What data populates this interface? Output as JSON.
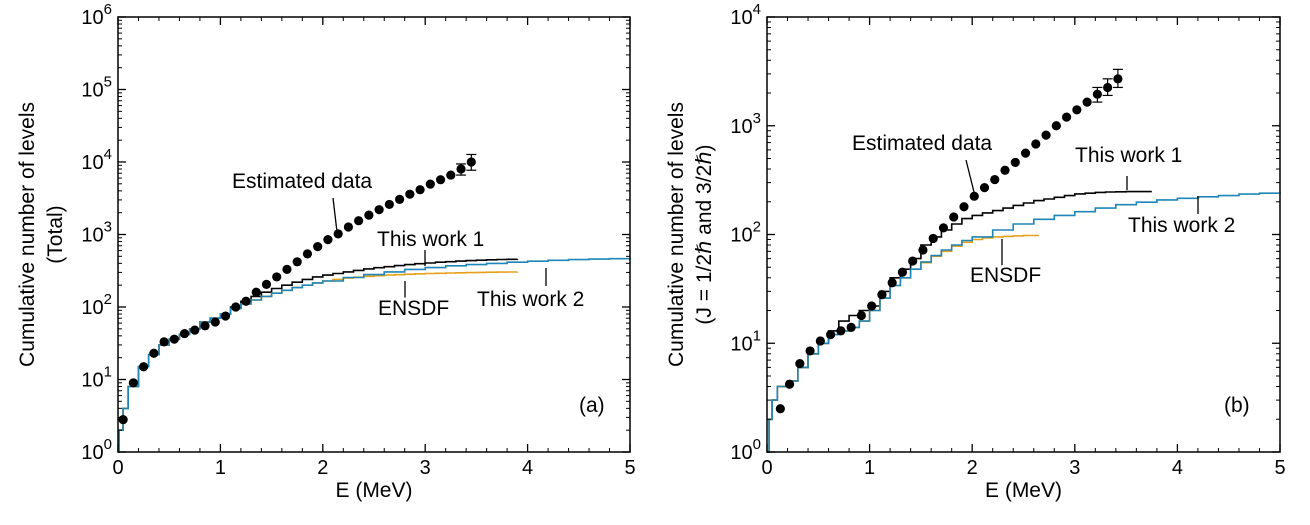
{
  "chart_data": [
    {
      "type": "line",
      "panel_label": "(a)",
      "xlabel": "E (MeV)",
      "ylabel": "Cumulative number of levels",
      "ylabel2": "(Total)",
      "xlim": [
        0,
        5
      ],
      "ylim": [
        1,
        1000000
      ],
      "yscale": "log",
      "xticks": [
        "0",
        "1",
        "2",
        "3",
        "4",
        "5"
      ],
      "yticks": [
        {
          "base": "10",
          "exp": "0"
        },
        {
          "base": "10",
          "exp": "1"
        },
        {
          "base": "10",
          "exp": "2"
        },
        {
          "base": "10",
          "exp": "3"
        },
        {
          "base": "10",
          "exp": "4"
        },
        {
          "base": "10",
          "exp": "5"
        },
        {
          "base": "10",
          "exp": "6"
        }
      ],
      "series": [
        {
          "name": "Estimated data",
          "kind": "points",
          "color": "#000000",
          "x": [
            0.05,
            0.15,
            0.25,
            0.35,
            0.45,
            0.55,
            0.65,
            0.75,
            0.85,
            0.95,
            1.05,
            1.15,
            1.25,
            1.35,
            1.45,
            1.55,
            1.65,
            1.75,
            1.85,
            1.95,
            2.05,
            2.15,
            2.25,
            2.35,
            2.45,
            2.55,
            2.65,
            2.75,
            2.85,
            2.95,
            3.05,
            3.15,
            3.25,
            3.35,
            3.45
          ],
          "y": [
            2.8,
            9,
            15,
            23,
            33,
            36,
            43,
            48,
            55,
            62,
            75,
            100,
            120,
            160,
            205,
            260,
            330,
            420,
            540,
            680,
            850,
            1020,
            1270,
            1550,
            1850,
            2200,
            2600,
            3050,
            3600,
            4150,
            4950,
            5700,
            6600,
            8000,
            10000
          ],
          "err_low": [
            0,
            0,
            0,
            0,
            0,
            0,
            0,
            0,
            0,
            0,
            0,
            0,
            0,
            0,
            0,
            0,
            0,
            0,
            0,
            0,
            0,
            0,
            0,
            0,
            0,
            0,
            0,
            0,
            0,
            0,
            0,
            0,
            0,
            1400,
            2300
          ],
          "err_high": [
            0,
            0,
            0,
            0,
            0,
            0,
            0,
            0,
            0,
            0,
            0,
            0,
            0,
            0,
            0,
            0,
            0,
            0,
            0,
            0,
            0,
            0,
            0,
            0,
            0,
            0,
            0,
            0,
            0,
            0,
            0,
            0,
            0,
            1400,
            2700
          ]
        },
        {
          "name": "This work 1",
          "kind": "line",
          "color": "#000000",
          "x": [
            0,
            0.01,
            0.05,
            0.1,
            0.2,
            0.3,
            0.4,
            0.5,
            0.6,
            0.7,
            0.8,
            0.9,
            1.0,
            1.1,
            1.2,
            1.3,
            1.4,
            1.5,
            1.6,
            1.7,
            1.8,
            1.9,
            2.0,
            2.1,
            2.2,
            2.3,
            2.4,
            2.5,
            2.6,
            2.7,
            2.8,
            2.9,
            3.0,
            3.1,
            3.2,
            3.3,
            3.4,
            3.5,
            3.6,
            3.7,
            3.8,
            3.9
          ],
          "y": [
            1,
            2,
            4,
            8,
            15,
            22,
            30,
            36,
            42,
            50,
            62,
            70,
            80,
            100,
            120,
            140,
            160,
            180,
            200,
            220,
            240,
            260,
            275,
            290,
            305,
            320,
            335,
            348,
            360,
            372,
            384,
            395,
            405,
            415,
            422,
            430,
            436,
            442,
            448,
            452,
            455,
            458
          ]
        },
        {
          "name": "ENSDF",
          "kind": "line",
          "color": "#e6a01a",
          "x": [
            0,
            0.01,
            0.05,
            0.1,
            0.2,
            0.3,
            0.4,
            0.5,
            0.6,
            0.7,
            0.8,
            0.9,
            1.0,
            1.1,
            1.2,
            1.3,
            1.4,
            1.5,
            1.6,
            1.7,
            1.8,
            1.9,
            2.0,
            2.1,
            2.2,
            2.3,
            2.4,
            2.5,
            2.6,
            2.7,
            2.8,
            2.9,
            3.0,
            3.1,
            3.2,
            3.3,
            3.4,
            3.5,
            3.6,
            3.7,
            3.8,
            3.9
          ],
          "y": [
            1,
            2,
            4,
            8,
            15,
            22,
            30,
            36,
            42,
            50,
            62,
            70,
            80,
            95,
            110,
            125,
            140,
            155,
            170,
            185,
            200,
            215,
            228,
            240,
            250,
            258,
            265,
            270,
            275,
            279,
            283,
            287,
            290,
            292,
            294,
            296,
            298,
            300,
            302,
            303,
            304,
            305
          ]
        },
        {
          "name": "This work 2",
          "kind": "line",
          "color": "#1e86b8",
          "x": [
            0,
            0.01,
            0.05,
            0.1,
            0.2,
            0.3,
            0.4,
            0.5,
            0.6,
            0.7,
            0.8,
            0.9,
            1.0,
            1.1,
            1.2,
            1.3,
            1.4,
            1.5,
            1.6,
            1.7,
            1.8,
            1.9,
            2.0,
            2.2,
            2.4,
            2.6,
            2.8,
            3.0,
            3.2,
            3.4,
            3.6,
            3.8,
            4.0,
            4.2,
            4.4,
            4.6,
            4.8,
            5.0
          ],
          "y": [
            1,
            2,
            4,
            8,
            15,
            22,
            30,
            36,
            42,
            50,
            62,
            70,
            80,
            95,
            110,
            125,
            140,
            155,
            170,
            185,
            200,
            215,
            228,
            255,
            280,
            305,
            330,
            350,
            370,
            385,
            400,
            415,
            428,
            440,
            450,
            458,
            464,
            470
          ]
        }
      ],
      "annotations": [
        {
          "text": "Estimated data"
        },
        {
          "text": "This work 1"
        },
        {
          "text": "ENSDF"
        },
        {
          "text": "This work 2"
        }
      ]
    },
    {
      "type": "line",
      "panel_label": "(b)",
      "xlabel": "E (MeV)",
      "ylabel": "Cumulative number of levels",
      "ylabel2": "(J = 1/2ℏ and 3/2ℏ)",
      "xlim": [
        0,
        5
      ],
      "ylim": [
        1,
        10000
      ],
      "yscale": "log",
      "xticks": [
        "0",
        "1",
        "2",
        "3",
        "4",
        "5"
      ],
      "yticks": [
        {
          "base": "10",
          "exp": "0"
        },
        {
          "base": "10",
          "exp": "1"
        },
        {
          "base": "10",
          "exp": "2"
        },
        {
          "base": "10",
          "exp": "3"
        },
        {
          "base": "10",
          "exp": "4"
        }
      ],
      "series": [
        {
          "name": "Estimated data",
          "kind": "points",
          "color": "#000000",
          "x": [
            0.13,
            0.22,
            0.32,
            0.42,
            0.52,
            0.62,
            0.72,
            0.82,
            0.92,
            1.02,
            1.12,
            1.22,
            1.32,
            1.42,
            1.52,
            1.62,
            1.72,
            1.82,
            1.92,
            2.02,
            2.12,
            2.22,
            2.32,
            2.42,
            2.52,
            2.62,
            2.72,
            2.82,
            2.92,
            3.02,
            3.12,
            3.22,
            3.32,
            3.42
          ],
          "y": [
            2.5,
            4.2,
            6.5,
            8.5,
            10.5,
            12,
            13,
            14,
            18,
            22,
            28,
            36,
            45,
            57,
            72,
            92,
            115,
            145,
            180,
            225,
            270,
            320,
            390,
            460,
            560,
            680,
            820,
            1000,
            1200,
            1400,
            1650,
            1950,
            2250,
            2700
          ],
          "err_low": [
            0,
            0,
            0,
            0,
            0,
            0,
            0,
            0,
            0,
            0,
            0,
            0,
            0,
            0,
            0,
            0,
            0,
            0,
            0,
            0,
            0,
            0,
            0,
            0,
            0,
            0,
            0,
            0,
            0,
            0,
            0,
            300,
            350,
            450
          ],
          "err_high": [
            0,
            0,
            0,
            0,
            0,
            0,
            0,
            0,
            0,
            0,
            0,
            0,
            0,
            0,
            0,
            0,
            0,
            0,
            0,
            0,
            0,
            0,
            0,
            0,
            0,
            0,
            0,
            0,
            0,
            0,
            0,
            300,
            450,
            600
          ]
        },
        {
          "name": "This work 1",
          "kind": "line",
          "color": "#000000",
          "x": [
            0,
            0.02,
            0.05,
            0.1,
            0.2,
            0.3,
            0.4,
            0.5,
            0.6,
            0.7,
            0.8,
            0.9,
            1.0,
            1.1,
            1.2,
            1.3,
            1.4,
            1.5,
            1.6,
            1.7,
            1.8,
            1.9,
            2.0,
            2.1,
            2.2,
            2.3,
            2.4,
            2.5,
            2.6,
            2.7,
            2.8,
            2.9,
            3.0,
            3.1,
            3.2,
            3.3,
            3.4,
            3.5,
            3.6,
            3.75
          ],
          "y": [
            1,
            2,
            3,
            4,
            4.5,
            6,
            8,
            10,
            13,
            16,
            18,
            20,
            22,
            30,
            40,
            48,
            60,
            80,
            95,
            110,
            125,
            140,
            150,
            158,
            166,
            175,
            185,
            195,
            205,
            212,
            220,
            228,
            236,
            240,
            244,
            246,
            247,
            248,
            248,
            248
          ]
        },
        {
          "name": "ENSDF",
          "kind": "line",
          "color": "#e6a01a",
          "x": [
            0,
            0.02,
            0.05,
            0.1,
            0.2,
            0.3,
            0.4,
            0.5,
            0.6,
            0.7,
            0.8,
            0.9,
            1.0,
            1.1,
            1.2,
            1.3,
            1.4,
            1.5,
            1.6,
            1.7,
            1.8,
            1.9,
            2.0,
            2.1,
            2.2,
            2.3,
            2.4,
            2.5,
            2.6,
            2.65
          ],
          "y": [
            1,
            2,
            3,
            4,
            4.5,
            6,
            8,
            10,
            12,
            13,
            14,
            16,
            20,
            26,
            34,
            40,
            48,
            55,
            63,
            70,
            78,
            85,
            90,
            93,
            95,
            96,
            97,
            98,
            98,
            98
          ]
        },
        {
          "name": "This work 2",
          "kind": "line",
          "color": "#1e86b8",
          "x": [
            0,
            0.02,
            0.05,
            0.1,
            0.2,
            0.3,
            0.4,
            0.5,
            0.6,
            0.7,
            0.8,
            0.9,
            1.0,
            1.1,
            1.2,
            1.3,
            1.4,
            1.5,
            1.6,
            1.7,
            1.8,
            1.9,
            2.0,
            2.2,
            2.4,
            2.6,
            2.8,
            3.0,
            3.2,
            3.4,
            3.6,
            3.8,
            4.0,
            4.2,
            4.4,
            4.6,
            4.8,
            5.0
          ],
          "y": [
            1,
            2,
            3,
            4,
            4.5,
            6,
            8,
            10,
            12,
            13,
            14,
            16,
            20,
            26,
            34,
            40,
            48,
            56,
            64,
            72,
            80,
            88,
            95,
            110,
            125,
            138,
            150,
            162,
            175,
            188,
            198,
            208,
            215,
            222,
            228,
            235,
            240,
            245
          ]
        }
      ],
      "annotations": [
        {
          "text": "Estimated data"
        },
        {
          "text": "This work 1"
        },
        {
          "text": "This work 2"
        },
        {
          "text": "ENSDF"
        }
      ]
    }
  ]
}
